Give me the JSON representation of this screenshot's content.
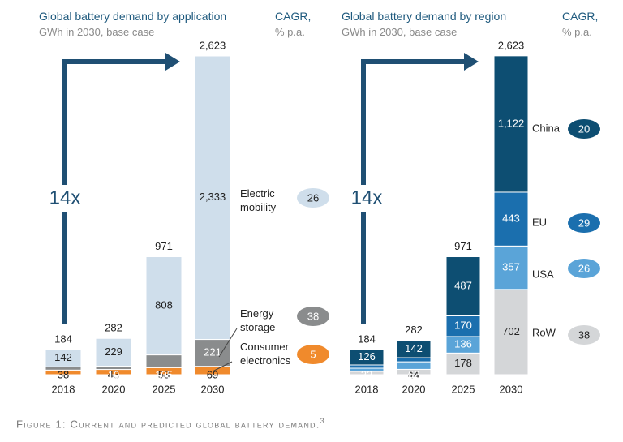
{
  "caption": {
    "text": "Figure 1: Current and predicted global battery demand.",
    "footnote": "3"
  },
  "colors": {
    "arrow": "#1f4f73",
    "light_blue": "#cfdeeb",
    "gray": "#8a8c8d",
    "orange": "#f08a2c",
    "dark_navy": "#0d4e72",
    "mid_blue": "#1b6fae",
    "sky_blue": "#5aa4d8",
    "light_gray": "#d4d6d8"
  },
  "chart_data": [
    {
      "type": "bar",
      "stacked": true,
      "title": "Global battery demand by application",
      "subtitle": "GWh in 2030, base case",
      "cagr_header": [
        "CAGR,",
        "% p.a."
      ],
      "growth_label": "14x",
      "categories": [
        "2018",
        "2020",
        "2025",
        "2030"
      ],
      "totals": [
        "184",
        "282",
        "971",
        "2,623"
      ],
      "series": [
        {
          "name": "Consumer electronics",
          "label_lines": [
            "Consumer",
            "electronics"
          ],
          "values": [
            38,
            43,
            58,
            69
          ],
          "labels": [
            "38",
            "43",
            "58",
            "69"
          ],
          "cagr": "5",
          "color": "#f08a2c"
        },
        {
          "name": "Energy storage",
          "label_lines": [
            "Energy",
            "storage"
          ],
          "values": [
            4,
            10,
            105,
            221
          ],
          "labels": [
            "",
            "10",
            "105",
            "221"
          ],
          "cagr": "38",
          "color": "#8a8c8d"
        },
        {
          "name": "Electric mobility",
          "label_lines": [
            "Electric",
            "mobility"
          ],
          "values": [
            142,
            229,
            808,
            2333
          ],
          "labels": [
            "142",
            "229",
            "808",
            "2,333"
          ],
          "cagr": "26",
          "color": "#cfdeeb"
        }
      ]
    },
    {
      "type": "bar",
      "stacked": true,
      "title": "Global battery demand by region",
      "subtitle": "GWh in 2030, base case",
      "cagr_header": [
        "CAGR,",
        "% p.a."
      ],
      "growth_label": "14x",
      "categories": [
        "2018",
        "2020",
        "2025",
        "2030"
      ],
      "totals": [
        "184",
        "282",
        "971",
        "2,623"
      ],
      "series": [
        {
          "name": "RoW",
          "label_lines": [
            "RoW"
          ],
          "values": [
            10,
            44,
            178,
            702
          ],
          "labels": [
            "",
            "44",
            "178",
            "702"
          ],
          "cagr": "38",
          "color": "#d4d6d8"
        },
        {
          "name": "USA",
          "label_lines": [
            "USA"
          ],
          "values": [
            22,
            62,
            136,
            357
          ],
          "labels": [
            "22",
            "62",
            "136",
            "357"
          ],
          "cagr": "26",
          "color": "#5aa4d8"
        },
        {
          "name": "EU",
          "label_lines": [
            "EU"
          ],
          "values": [
            26,
            34,
            170,
            443
          ],
          "labels": [
            "",
            "",
            "170",
            "443"
          ],
          "cagr": "29",
          "color": "#1b6fae"
        },
        {
          "name": "China",
          "label_lines": [
            "China"
          ],
          "values": [
            126,
            142,
            487,
            1122
          ],
          "labels": [
            "126",
            "142",
            "487",
            "1,122"
          ],
          "cagr": "20",
          "color": "#0d4e72"
        }
      ]
    }
  ]
}
